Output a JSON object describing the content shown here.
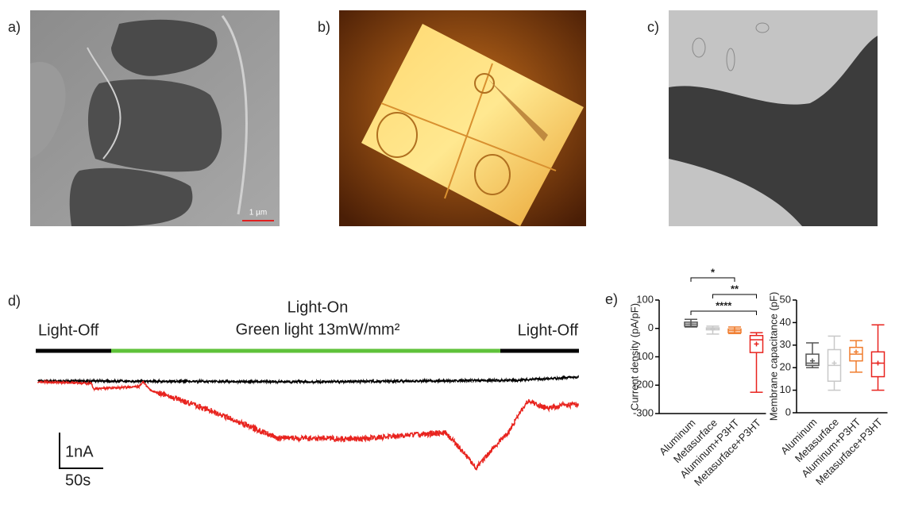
{
  "panels": {
    "a": {
      "label": "a)",
      "scale_bar": "1 µm"
    },
    "b": {
      "label": "b)"
    },
    "c": {
      "label": "c)"
    },
    "d": {
      "label": "d)",
      "light_off_start": "Light-Off",
      "light_on": "Light-On",
      "light_condition": "Green light 13mW/mm²",
      "light_off_end": "Light-Off",
      "scale_current": "1nA",
      "scale_time": "50s"
    },
    "e": {
      "label": "e)"
    }
  },
  "chart_data": [
    {
      "type": "box",
      "y_label": "Current density (pA/pF)",
      "categories": [
        "Aluminum",
        "Metasurface",
        "Aluminum+P3HT",
        "Metasurface+P3HT"
      ],
      "boxes": [
        {
          "min": 5,
          "q1": 8,
          "median": 15,
          "q3": 22,
          "max": 32,
          "mean": 15,
          "color": "#555555"
        },
        {
          "min": -20,
          "q1": -5,
          "median": 0,
          "q3": 2,
          "max": 8,
          "mean": -2,
          "color": "#c8c8c8"
        },
        {
          "min": -18,
          "q1": -15,
          "median": -8,
          "q3": -2,
          "max": 5,
          "mean": -8,
          "color": "#f07d2e"
        },
        {
          "min": -225,
          "q1": -85,
          "median": -40,
          "q3": -25,
          "max": -15,
          "mean": -55,
          "color": "#e8231e"
        }
      ],
      "ylim": [
        -300,
        100
      ],
      "yticks": [
        -300,
        -200,
        -100,
        0,
        100
      ],
      "significance": [
        {
          "text": "*",
          "pair": [
            "Aluminum",
            "Aluminum+P3HT"
          ]
        },
        {
          "text": "**",
          "pair": [
            "Metasurface",
            "Metasurface+P3HT"
          ]
        },
        {
          "text": "****",
          "pair": [
            "Aluminum",
            "Metasurface+P3HT"
          ]
        }
      ]
    },
    {
      "type": "box",
      "y_label": "Membrane capacitance (pF)",
      "categories": [
        "Aluminum",
        "Metasurface",
        "Aluminum+P3HT",
        "Metasurface+P3HT"
      ],
      "boxes": [
        {
          "min": 20,
          "q1": 21,
          "median": 22,
          "q3": 26,
          "max": 31,
          "mean": 23,
          "color": "#555555"
        },
        {
          "min": 10,
          "q1": 14,
          "median": 21,
          "q3": 28,
          "max": 34,
          "mean": 22,
          "color": "#c8c8c8"
        },
        {
          "min": 18,
          "q1": 23,
          "median": 26,
          "q3": 29,
          "max": 32,
          "mean": 27,
          "color": "#f07d2e"
        },
        {
          "min": 10,
          "q1": 16,
          "median": 22,
          "q3": 27,
          "max": 39,
          "mean": 22,
          "color": "#e8231e"
        }
      ],
      "ylim": [
        0,
        50
      ],
      "yticks": [
        0,
        10,
        20,
        30,
        40,
        50
      ],
      "significance": []
    }
  ]
}
